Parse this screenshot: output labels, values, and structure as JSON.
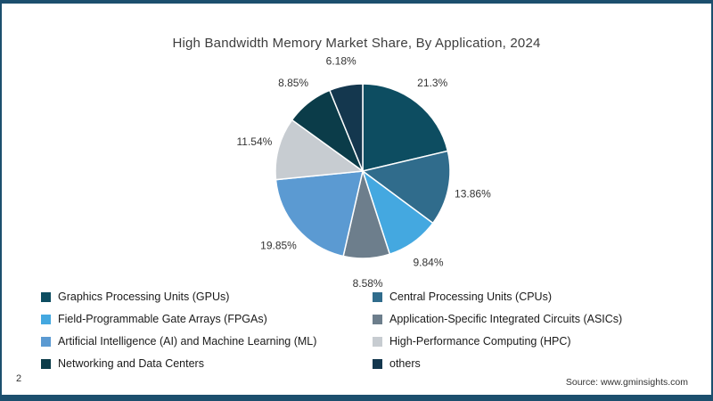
{
  "page": {
    "page_number": "2",
    "source": "Source: www.gminsights.com"
  },
  "chart_data": {
    "type": "pie",
    "title": "High Bandwidth Memory Market Share, By Application, 2024",
    "legend_position": "bottom",
    "start_angle_deg": 0,
    "direction": "clockwise",
    "value_unit": "%",
    "segments": [
      {
        "id": "gpus",
        "label": "Graphics Processing Units (GPUs)",
        "value": 21.3,
        "pct_label": "21.3%",
        "color": "#0d4d61"
      },
      {
        "id": "cpus",
        "label": "Central Processing Units (CPUs)",
        "value": 13.86,
        "pct_label": "13.86%",
        "color": "#306c8c"
      },
      {
        "id": "fpgas",
        "label": "Field-Programmable Gate Arrays (FPGAs)",
        "value": 9.84,
        "pct_label": "9.84%",
        "color": "#44a8e0"
      },
      {
        "id": "asics",
        "label": "Application-Specific Integrated Circuits (ASICs)",
        "value": 8.58,
        "pct_label": "8.58%",
        "color": "#6d7e8c"
      },
      {
        "id": "ai-ml",
        "label": "Artificial Intelligence (AI) and Machine Learning (ML)",
        "value": 19.85,
        "pct_label": "19.85%",
        "color": "#5b9ad2"
      },
      {
        "id": "hpc",
        "label": "High-Performance Computing (HPC)",
        "value": 11.54,
        "pct_label": "11.54%",
        "color": "#c7ccd1"
      },
      {
        "id": "networking",
        "label": "Networking and Data Centers",
        "value": 8.85,
        "pct_label": "8.85%",
        "color": "#0b3c49"
      },
      {
        "id": "others",
        "label": "others",
        "value": 6.18,
        "pct_label": "6.18%",
        "color": "#14374e"
      }
    ]
  }
}
